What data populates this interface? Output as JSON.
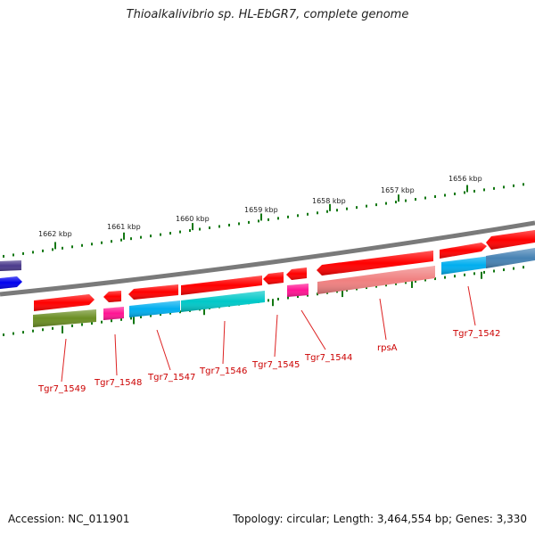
{
  "title": "Thioalkalivibrio sp. HL-EbGR7, complete genome",
  "footer": {
    "accession": "Accession: NC_011901",
    "summary": "Topology: circular; Length: 3,464,554 bp; Genes: 3,330"
  },
  "colors": {
    "backbone": "#888888",
    "tick": "#117711",
    "label": "#cc0000",
    "forward_gene": "#ff0000"
  },
  "scale_labels": [
    "1662 kbp",
    "1661 kbp",
    "1660 kbp",
    "1659 kbp",
    "1658 kbp",
    "1657 kbp",
    "1656 kbp"
  ],
  "gene_labels": [
    "Tgr7_1549",
    "Tgr7_1548",
    "Tgr7_1547",
    "Tgr7_1546",
    "Tgr7_1545",
    "Tgr7_1544",
    "rpsA",
    "Tgr7_1542"
  ],
  "genes": [
    {
      "color": "#4a3a8c"
    },
    {
      "color": "#0000ee"
    },
    {
      "color": "#ff0000"
    },
    {
      "color": "#ff0000"
    },
    {
      "color": "#ff0000"
    },
    {
      "color": "#ff0000"
    },
    {
      "color": "#ff0000"
    },
    {
      "color": "#ff0000"
    },
    {
      "color": "#ff0000"
    },
    {
      "color": "#ff0000"
    },
    {
      "color": "#ff0000"
    },
    {
      "color": "#6b8e23"
    },
    {
      "color": "#ff1493"
    },
    {
      "color": "#00aeef"
    },
    {
      "color": "#00c8c8"
    },
    {
      "color": "#ff1493"
    },
    {
      "color": "#f08080"
    },
    {
      "color": "#00aeef"
    },
    {
      "color": "#4682b4"
    }
  ]
}
